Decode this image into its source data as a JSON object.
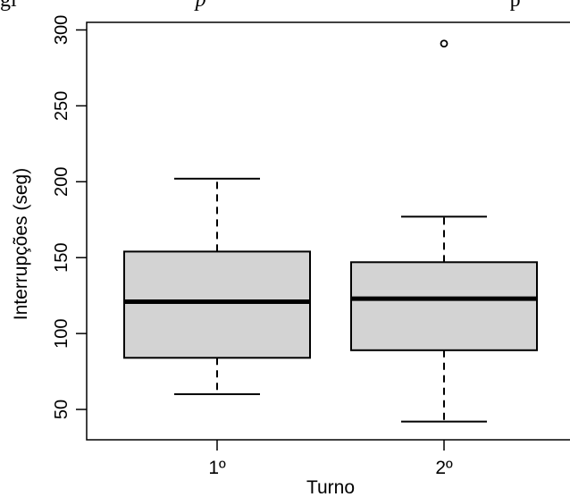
{
  "caption_fragment": {
    "part1": "gi",
    "part2": "p",
    "part3": "p"
  },
  "chart_data": {
    "type": "boxplot",
    "title": "",
    "xlabel": "Turno",
    "ylabel": "Interrupções (seg)",
    "categories": [
      "1º",
      "2º"
    ],
    "ylim": [
      30,
      305
    ],
    "yticks": [
      50,
      100,
      150,
      200,
      250,
      300
    ],
    "series": [
      {
        "category": "1º",
        "min": 60,
        "q1": 84,
        "median": 121,
        "q3": 154,
        "max": 202,
        "outliers": []
      },
      {
        "category": "2º",
        "min": 42,
        "q1": 89,
        "median": 123,
        "q3": 147,
        "max": 177,
        "outliers": [
          291
        ]
      }
    ],
    "colors": {
      "box_fill": "#d3d3d3",
      "stroke": "#000000"
    },
    "grid": false,
    "legend": "none"
  }
}
